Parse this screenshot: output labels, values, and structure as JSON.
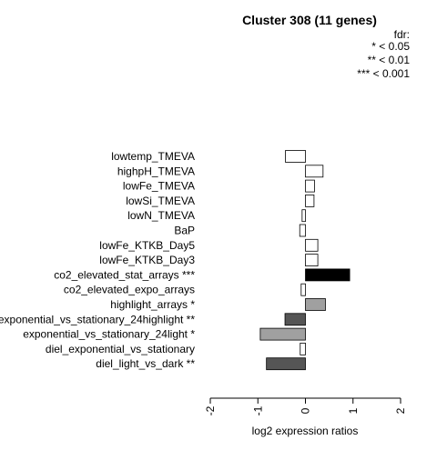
{
  "chart_data": {
    "type": "bar",
    "orientation": "horizontal",
    "title": "Cluster 308 (11 genes)",
    "xlabel": "log2 expression ratios",
    "ylabel": "",
    "xlim": [
      -2,
      2
    ],
    "xticks": [
      "-2",
      "-1",
      "0",
      "1",
      "2"
    ],
    "legend": {
      "title": "fdr:",
      "entries": [
        "* < 0.05",
        "** < 0.01",
        "*** < 0.001"
      ],
      "placement": "top-right"
    },
    "categories": [
      "lowtemp_TMEVA",
      "highpH_TMEVA",
      "lowFe_TMEVA",
      "lowSi_TMEVA",
      "lowN_TMEVA",
      "BaP",
      "lowFe_KTKB_Day5",
      "lowFe_KTKB_Day3",
      "co2_elevated_stat_arrays ***",
      "co2_elevated_expo_arrays",
      "highlight_arrays *",
      "exponential_vs_stationary_24highlight **",
      "exponential_vs_stationary_24light *",
      "diel_exponential_vs_stationary",
      "diel_light_vs_dark **"
    ],
    "values": [
      -0.42,
      0.37,
      0.19,
      0.18,
      -0.07,
      -0.12,
      0.26,
      0.26,
      0.93,
      -0.09,
      0.42,
      -0.43,
      -0.95,
      -0.11,
      -0.82
    ],
    "colors": [
      "#ffffff",
      "#ffffff",
      "#ffffff",
      "#ffffff",
      "#ffffff",
      "#ffffff",
      "#ffffff",
      "#ffffff",
      "#000000",
      "#ffffff",
      "#a0a0a0",
      "#555555",
      "#a0a0a0",
      "#ffffff",
      "#555555"
    ]
  }
}
